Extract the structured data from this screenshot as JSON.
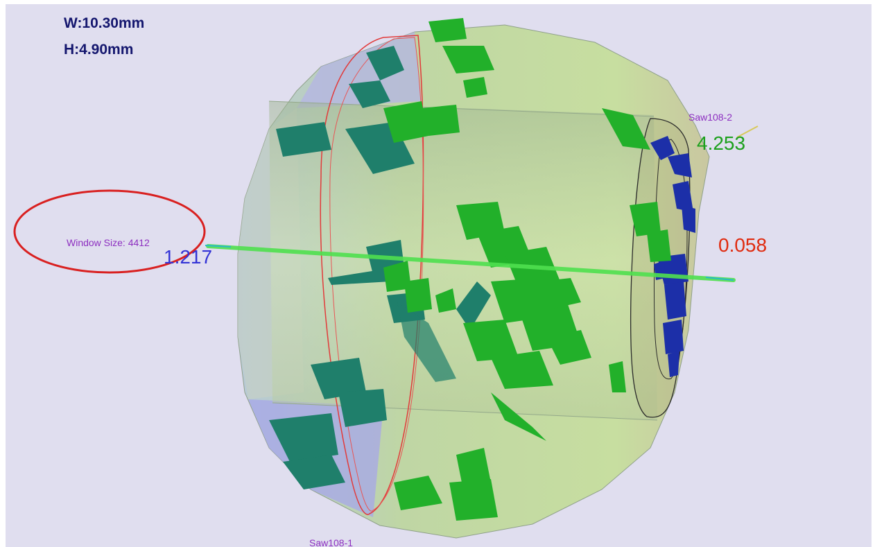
{
  "overlay": {
    "width_label": "W:10.30mm",
    "height_label": "H:4.90mm",
    "window_size_label": "Window Size: 4412",
    "measure_left": "1.217",
    "measure_right": "0.058",
    "measure_top_right": "4.253",
    "saw_top_label": "Saw108-2",
    "saw_bottom_label": "Saw108-1"
  },
  "colors": {
    "viewport_bg": "#e0deef",
    "stone_body": "#c2d8a6",
    "stone_edge_blue": "#a9a9ea",
    "inclusion_green": "#22b02a",
    "inclusion_teal": "#1f7f6b",
    "inclusion_blue": "#1c2fa8",
    "saw_outline_red": "#e23a3a",
    "axis_green": "#4fe04f",
    "annotation_circle": "#d92020"
  }
}
